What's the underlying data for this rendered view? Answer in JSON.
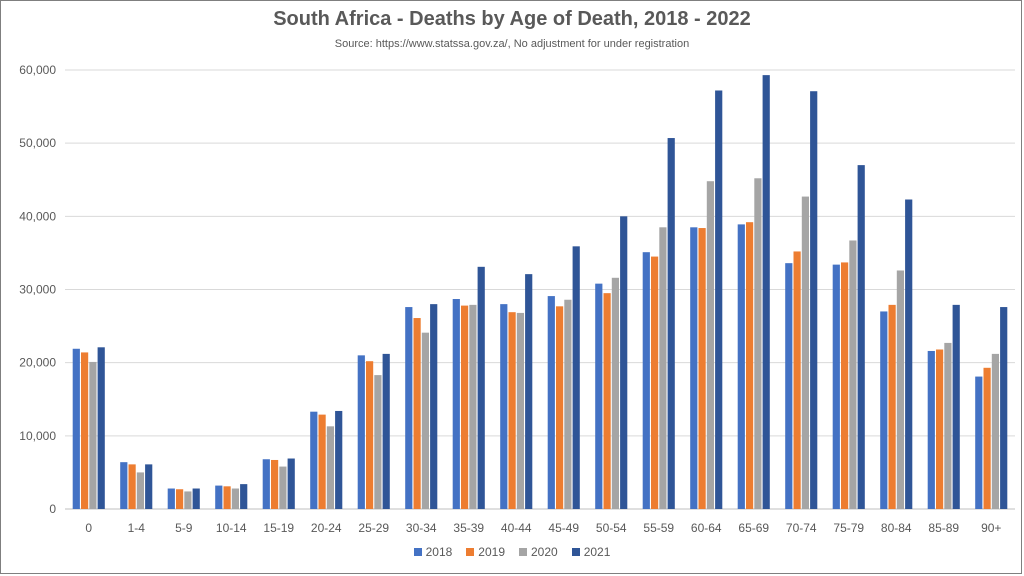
{
  "chart_data": {
    "type": "bar",
    "title": "South Africa - Deaths by Age of Death, 2018 - 2022",
    "subtitle": "Source: https://www.statssa.gov.za/, No adjustment for under registration",
    "xlabel": "",
    "ylabel": "",
    "ylim": [
      0,
      60000
    ],
    "yticks": [
      "0",
      "10,000",
      "20,000",
      "30,000",
      "40,000",
      "50,000",
      "60,000"
    ],
    "ytick_values": [
      0,
      10000,
      20000,
      30000,
      40000,
      50000,
      60000
    ],
    "grid": true,
    "legend_position": "bottom",
    "categories": [
      "0",
      "1-4",
      "5-9",
      "10-14",
      "15-19",
      "20-24",
      "25-29",
      "30-34",
      "35-39",
      "40-44",
      "45-49",
      "50-54",
      "55-59",
      "60-64",
      "65-69",
      "70-74",
      "75-79",
      "80-84",
      "85-89",
      "90+"
    ],
    "series": [
      {
        "name": "2018",
        "color": "#4472c4",
        "values": [
          21900,
          6400,
          2800,
          3200,
          6800,
          13300,
          21000,
          27600,
          28700,
          28000,
          29100,
          30800,
          35100,
          38500,
          38900,
          33600,
          33400,
          27000,
          21600,
          18100
        ]
      },
      {
        "name": "2019",
        "color": "#ed7d31",
        "values": [
          21400,
          6100,
          2700,
          3100,
          6700,
          12900,
          20200,
          26100,
          27800,
          26900,
          27700,
          29500,
          34500,
          38400,
          39200,
          35200,
          33700,
          27900,
          21800,
          19300
        ]
      },
      {
        "name": "2020",
        "color": "#a5a5a5",
        "values": [
          20100,
          5000,
          2400,
          2800,
          5800,
          11300,
          18300,
          24100,
          27900,
          26800,
          28600,
          31600,
          38500,
          44800,
          45200,
          42700,
          36700,
          32600,
          22700,
          21200
        ]
      },
      {
        "name": "2021",
        "color": "#2f5597",
        "values": [
          22100,
          6100,
          2800,
          3400,
          6900,
          13400,
          21200,
          28000,
          33100,
          32100,
          35900,
          40000,
          50700,
          57200,
          59300,
          57100,
          47000,
          42300,
          27900,
          27600
        ]
      }
    ]
  }
}
